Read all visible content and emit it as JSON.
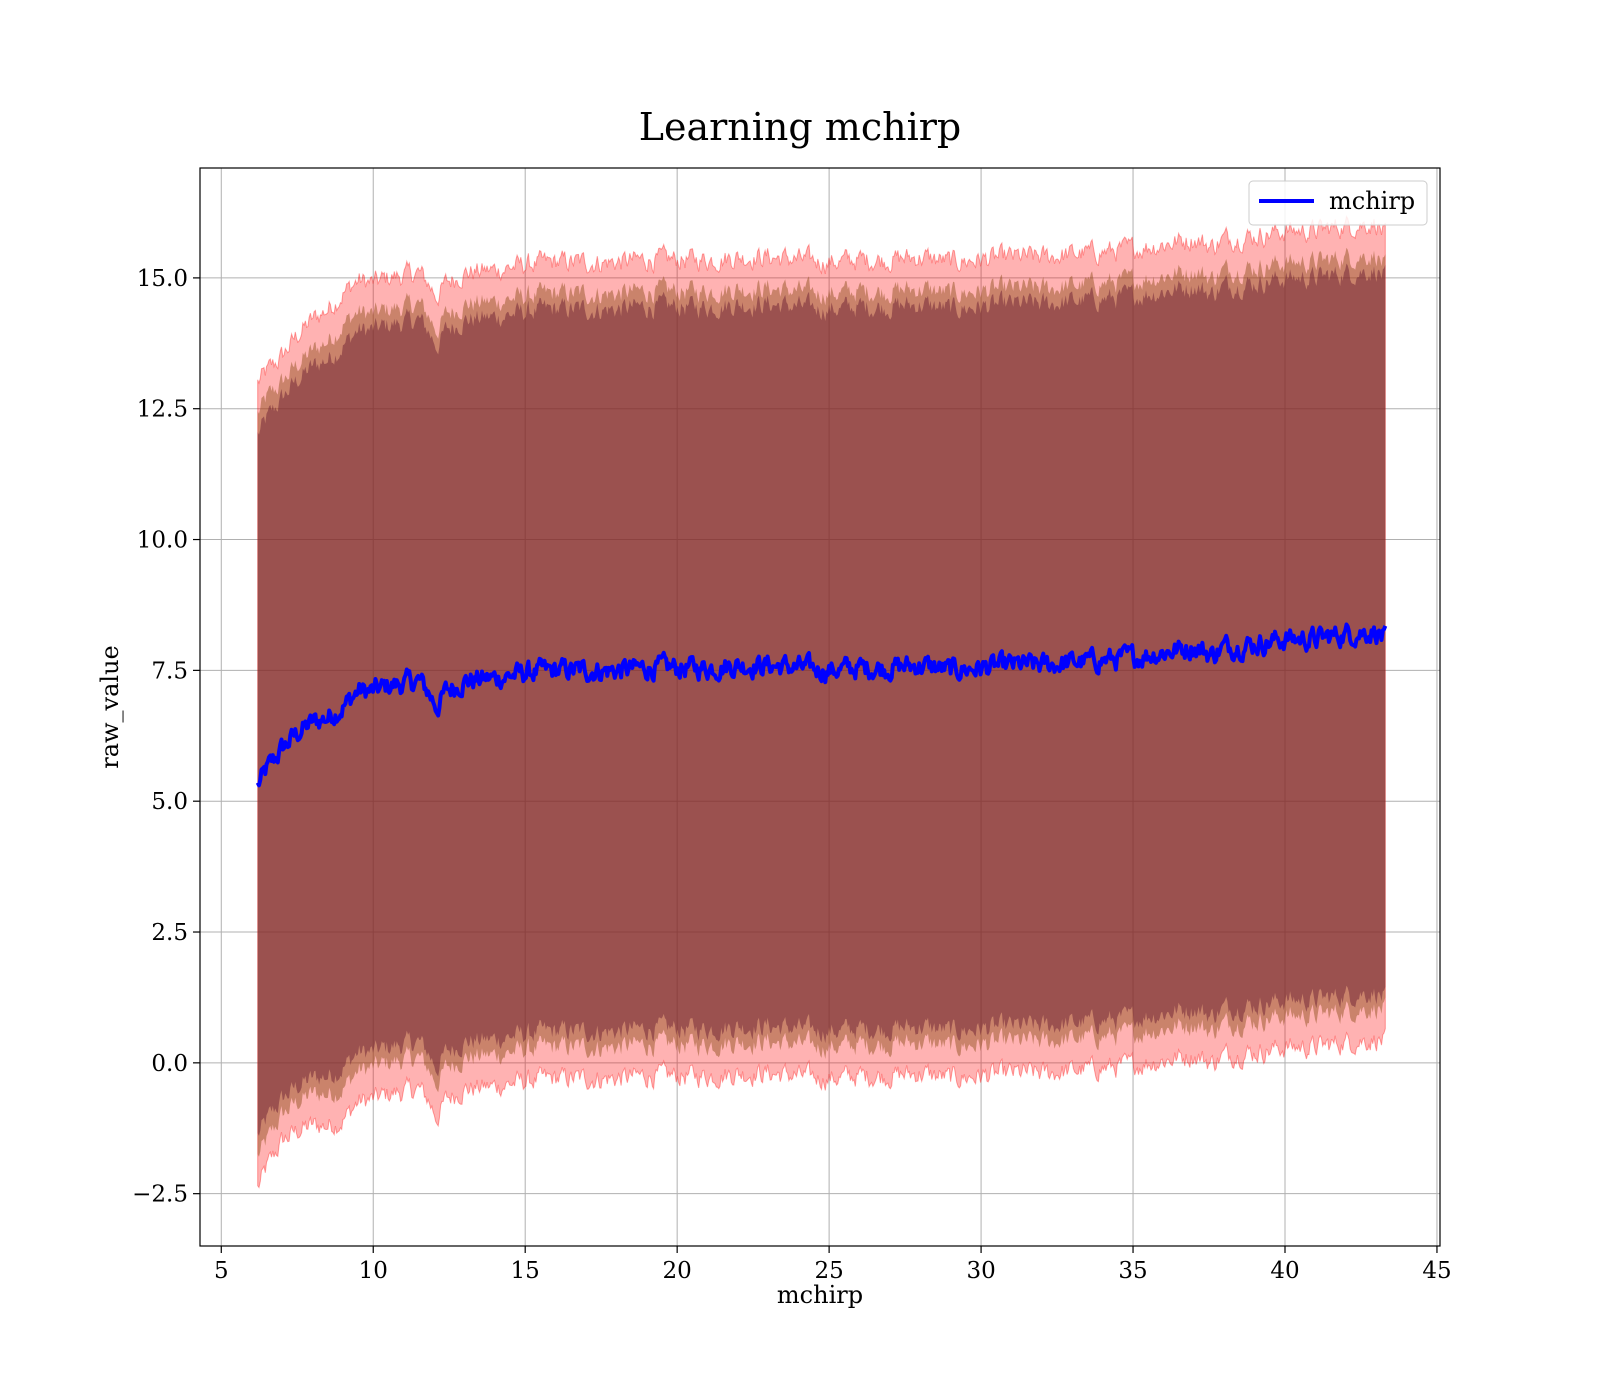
{
  "chart_data": {
    "type": "line",
    "title": "Learning mchirp",
    "xlabel": "mchirp",
    "ylabel": "raw_value",
    "xlim": [
      4.3,
      45.1
    ],
    "ylim": [
      -3.5,
      17.1
    ],
    "xticks": [
      5,
      10,
      15,
      20,
      25,
      30,
      35,
      40,
      45
    ],
    "xtick_labels": [
      "5",
      "10",
      "15",
      "20",
      "25",
      "30",
      "35",
      "40",
      "45"
    ],
    "yticks": [
      -2.5,
      0.0,
      2.5,
      5.0,
      7.5,
      10.0,
      12.5,
      15.0
    ],
    "ytick_labels": [
      "−2.5",
      "0.0",
      "2.5",
      "5.0",
      "7.5",
      "10.0",
      "12.5",
      "15.0"
    ],
    "grid": true,
    "legend": {
      "position": "top-right",
      "entries": [
        "mchirp"
      ]
    },
    "colors": {
      "line": "#0000ff",
      "band": "#ff0000",
      "inner_band": "#6b1f33"
    },
    "series": [
      {
        "name": "mchirp",
        "x": [
          6.2,
          6.5,
          7.0,
          7.5,
          8.0,
          8.5,
          9.0,
          9.5,
          10.0,
          10.5,
          11.0,
          11.5,
          11.8,
          12.1,
          12.4,
          13.0,
          14.0,
          15.0,
          16.0,
          17.0,
          18.0,
          19.0,
          20.0,
          21.0,
          22.0,
          23.0,
          24.0,
          25.0,
          26.0,
          27.0,
          28.0,
          29.0,
          30.0,
          31.0,
          32.0,
          33.0,
          34.0,
          35.0,
          36.0,
          37.0,
          37.6,
          38.0,
          39.0,
          40.0,
          41.0,
          42.0,
          43.0,
          43.3
        ],
        "y": [
          5.3,
          5.6,
          6.0,
          6.3,
          6.5,
          6.6,
          6.8,
          7.1,
          7.1,
          7.2,
          7.25,
          7.3,
          7.1,
          6.8,
          7.1,
          7.3,
          7.35,
          7.45,
          7.5,
          7.5,
          7.5,
          7.55,
          7.55,
          7.55,
          7.6,
          7.6,
          7.55,
          7.5,
          7.55,
          7.55,
          7.6,
          7.5,
          7.55,
          7.6,
          7.6,
          7.65,
          7.7,
          7.75,
          7.85,
          7.95,
          7.8,
          7.95,
          8.0,
          8.1,
          8.1,
          8.2,
          8.25,
          8.1
        ],
        "outer_band_halfwidth": [
          7.7,
          7.6,
          7.5,
          7.6,
          7.7,
          7.8,
          7.9,
          7.85,
          7.8,
          7.8,
          7.8,
          7.8,
          7.8,
          7.85,
          7.8,
          7.8,
          7.8,
          7.8,
          7.8,
          7.8,
          7.8,
          7.8,
          7.8,
          7.8,
          7.8,
          7.8,
          7.8,
          7.8,
          7.8,
          7.8,
          7.8,
          7.8,
          7.8,
          7.8,
          7.8,
          7.8,
          7.8,
          7.8,
          7.8,
          7.8,
          7.8,
          7.8,
          7.8,
          7.8,
          7.8,
          7.8,
          7.8,
          7.7
        ],
        "mid_band_halfwidth": [
          7.1,
          7.1,
          7.0,
          7.05,
          7.1,
          7.2,
          7.3,
          7.25,
          7.2,
          7.2,
          7.2,
          7.2,
          7.2,
          7.2,
          7.2,
          7.2,
          7.2,
          7.2,
          7.2,
          7.2,
          7.2,
          7.2,
          7.2,
          7.2,
          7.2,
          7.2,
          7.2,
          7.2,
          7.2,
          7.2,
          7.2,
          7.2,
          7.2,
          7.2,
          7.2,
          7.2,
          7.2,
          7.2,
          7.2,
          7.2,
          7.2,
          7.2,
          7.2,
          7.2,
          7.2,
          7.2,
          7.2,
          7.1
        ],
        "inner_band_halfwidth": [
          6.7,
          6.7,
          6.7,
          6.75,
          6.8,
          6.85,
          6.9,
          6.9,
          6.9,
          6.9,
          6.9,
          6.9,
          6.9,
          6.9,
          6.9,
          6.9,
          6.9,
          6.9,
          6.9,
          6.9,
          6.9,
          6.9,
          6.9,
          6.9,
          6.9,
          6.9,
          6.9,
          6.9,
          6.9,
          6.9,
          6.9,
          6.9,
          6.9,
          6.9,
          6.9,
          6.9,
          6.9,
          6.9,
          6.9,
          6.9,
          6.9,
          6.9,
          6.9,
          6.9,
          6.9,
          6.9,
          6.9,
          6.9
        ]
      }
    ]
  }
}
